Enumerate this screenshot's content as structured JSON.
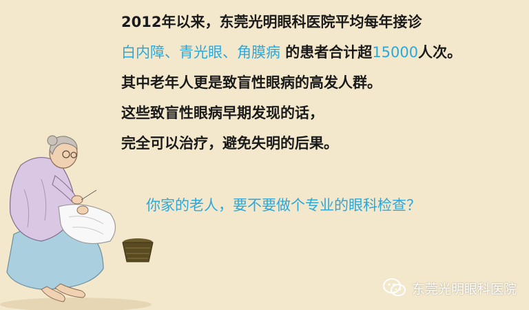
{
  "lines": {
    "line1": "2012年以来，东莞光明眼科医院平均每年接诊",
    "line2_highlight": "白内障、青光眼、角膜病",
    "line2_mid": " 的患者合计超",
    "line2_number": "15000",
    "line2_end": "人次。",
    "line3": "其中老年人更是致盲性眼病的高发人群。",
    "line4": "这些致盲性眼病早期发现的话，",
    "line5": "完全可以治疗，避免失明的后果。"
  },
  "question": "你家的老人，要不要做个专业的眼科检查？",
  "watermark": {
    "text": "东莞光明眼科医院",
    "icon": "wechat-icon"
  },
  "colors": {
    "background": "#f4e8cc",
    "accent": "#2ba8db",
    "text": "#1a1a1a"
  }
}
